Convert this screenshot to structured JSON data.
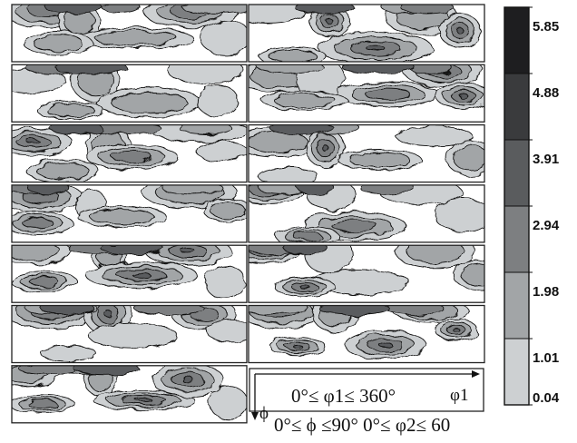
{
  "chart_data": {
    "type": "heatmap",
    "title": "",
    "colorbar": {
      "levels": [
        "0.04",
        "1.01",
        "1.98",
        "2.94",
        "3.91",
        "4.88",
        "5.85"
      ],
      "colors": [
        "#ffffff",
        "#cdd0d2",
        "#a2a5a7",
        "#7d7f81",
        "#5a5c5e",
        "#3a3b3d",
        "#1e1e20"
      ]
    },
    "layout": {
      "rows": 7,
      "cols": 2,
      "last_panel": "axis-key"
    },
    "ranges": {
      "phi1": "0°≤ φ1≤ 360°",
      "phi_and_phi2": "0°≤ ϕ ≤90°  0°≤ φ2≤ 60"
    },
    "axis_labels": {
      "x": "φ1",
      "y": "ϕ"
    }
  },
  "colors": {
    "frame": "#222222",
    "contour": "#111111"
  }
}
